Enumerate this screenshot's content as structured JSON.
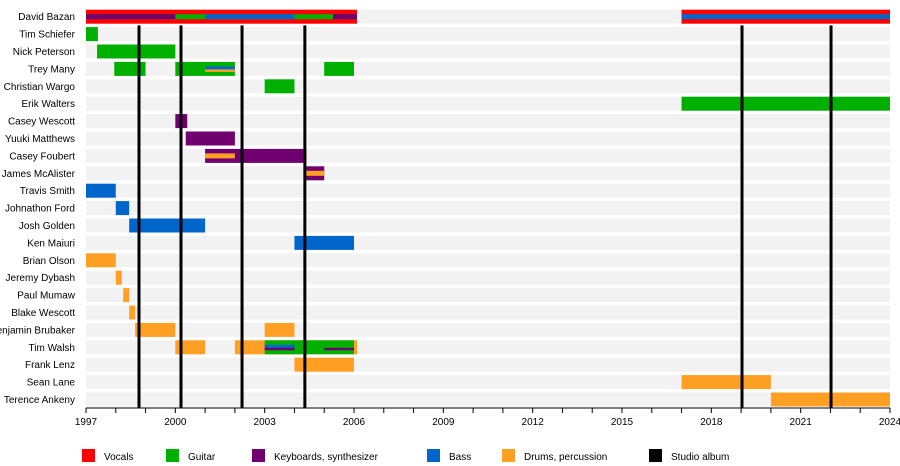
{
  "chart_data": {
    "type": "timeline",
    "xlim": [
      1997,
      2024
    ],
    "x_ticks": [
      1997,
      2000,
      2003,
      2006,
      2009,
      2012,
      2015,
      2018,
      2021,
      2024
    ],
    "grid": false,
    "legend_placement": "bottom",
    "roles": {
      "vocals": {
        "label": "Vocals",
        "color": "#ff0000"
      },
      "guitar": {
        "label": "Guitar",
        "color": "#00b000"
      },
      "keyboards": {
        "label": "Keyboards, synthesizer",
        "color": "#700070"
      },
      "bass": {
        "label": "Bass",
        "color": "#0066cc"
      },
      "drums": {
        "label": "Drums, percussion",
        "color": "#ffa024"
      },
      "album": {
        "label": "Studio album",
        "color": "#000000"
      }
    },
    "legend_order": [
      "vocals",
      "guitar",
      "keyboards",
      "bass",
      "drums",
      "album"
    ],
    "studio_albums": [
      1998.78,
      2000.19,
      2002.24,
      2004.35,
      2019.03,
      2022.02
    ],
    "members": [
      {
        "name": "David Bazan",
        "bars": [
          {
            "role": "vocals",
            "start": 1997,
            "end": 2006.1
          },
          {
            "role": "guitar",
            "start": 1997,
            "end": 2006.1,
            "secondary": true
          },
          {
            "role": "keyboards",
            "start": 1997,
            "end": 2000,
            "secondary": true
          },
          {
            "role": "bass",
            "start": 2001,
            "end": 2004,
            "secondary": true
          },
          {
            "role": "keyboards",
            "start": 2005.3,
            "end": 2006.1,
            "secondary": true
          },
          {
            "role": "vocals",
            "start": 2017,
            "end": 2024
          },
          {
            "role": "bass",
            "start": 2017,
            "end": 2024,
            "secondary": true
          }
        ]
      },
      {
        "name": "Tim Schiefer",
        "bars": [
          {
            "role": "guitar",
            "start": 1997,
            "end": 1997.4
          }
        ]
      },
      {
        "name": "Nick Peterson",
        "bars": [
          {
            "role": "guitar",
            "start": 1997.37,
            "end": 2000
          }
        ]
      },
      {
        "name": "Trey Many",
        "bars": [
          {
            "role": "guitar",
            "start": 1997.95,
            "end": 1999
          },
          {
            "role": "guitar",
            "start": 2000,
            "end": 2002
          },
          {
            "role": "bass",
            "start": 2001,
            "end": 2002,
            "secondary": true
          },
          {
            "role": "drums",
            "start": 2001,
            "end": 2002,
            "secondary": true,
            "thin": true
          },
          {
            "role": "guitar",
            "start": 2005,
            "end": 2006
          }
        ]
      },
      {
        "name": "Christian Wargo",
        "bars": [
          {
            "role": "guitar",
            "start": 2003,
            "end": 2004
          }
        ]
      },
      {
        "name": "Erik Walters",
        "bars": [
          {
            "role": "guitar",
            "start": 2017,
            "end": 2024
          }
        ]
      },
      {
        "name": "Casey Wescott",
        "bars": [
          {
            "role": "keyboards",
            "start": 2000,
            "end": 2000.4
          }
        ]
      },
      {
        "name": "Yuuki Matthews",
        "bars": [
          {
            "role": "keyboards",
            "start": 2000.35,
            "end": 2002
          }
        ]
      },
      {
        "name": "Casey Foubert",
        "bars": [
          {
            "role": "keyboards",
            "start": 2001,
            "end": 2004.4
          },
          {
            "role": "drums",
            "start": 2001,
            "end": 2002,
            "secondary": true
          }
        ]
      },
      {
        "name": "James McAlister",
        "bars": [
          {
            "role": "keyboards",
            "start": 2004.35,
            "end": 2005
          },
          {
            "role": "drums",
            "start": 2004.35,
            "end": 2005,
            "secondary": true
          }
        ]
      },
      {
        "name": "Travis Smith",
        "bars": [
          {
            "role": "bass",
            "start": 1997,
            "end": 1998
          }
        ]
      },
      {
        "name": "Johnathon Ford",
        "bars": [
          {
            "role": "bass",
            "start": 1998,
            "end": 1998.45
          }
        ]
      },
      {
        "name": "Josh Golden",
        "bars": [
          {
            "role": "bass",
            "start": 1998.45,
            "end": 2001
          }
        ]
      },
      {
        "name": "Ken Maiuri",
        "bars": [
          {
            "role": "bass",
            "start": 2004,
            "end": 2006
          }
        ]
      },
      {
        "name": "Brian Olson",
        "bars": [
          {
            "role": "drums",
            "start": 1997,
            "end": 1998
          }
        ]
      },
      {
        "name": "Jeremy Dybash",
        "bars": [
          {
            "role": "drums",
            "start": 1998,
            "end": 1998.2
          }
        ]
      },
      {
        "name": "Paul Mumaw",
        "bars": [
          {
            "role": "drums",
            "start": 1998.25,
            "end": 1998.45
          }
        ]
      },
      {
        "name": "Blake Wescott",
        "bars": [
          {
            "role": "drums",
            "start": 1998.45,
            "end": 1998.65
          }
        ]
      },
      {
        "name": "Benjamin Brubaker",
        "bars": [
          {
            "role": "drums",
            "start": 1998.65,
            "end": 2000
          },
          {
            "role": "drums",
            "start": 2003,
            "end": 2004
          }
        ]
      },
      {
        "name": "Tim Walsh",
        "bars": [
          {
            "role": "drums",
            "start": 2000,
            "end": 2001
          },
          {
            "role": "drums",
            "start": 2002,
            "end": 2006.1
          },
          {
            "role": "guitar",
            "start": 2003,
            "end": 2006
          },
          {
            "role": "bass",
            "start": 2003,
            "end": 2004,
            "secondary": true
          },
          {
            "role": "keyboards",
            "start": 2003,
            "end": 2004,
            "secondary": true,
            "thin": true
          },
          {
            "role": "keyboards",
            "start": 2005,
            "end": 2006,
            "secondary": true,
            "thin": true
          }
        ]
      },
      {
        "name": "Frank Lenz",
        "bars": [
          {
            "role": "drums",
            "start": 2004,
            "end": 2006
          }
        ]
      },
      {
        "name": "Sean Lane",
        "bars": [
          {
            "role": "drums",
            "start": 2017,
            "end": 2020
          }
        ]
      },
      {
        "name": "Terence Ankeny",
        "bars": [
          {
            "role": "drums",
            "start": 2020,
            "end": 2024
          }
        ]
      }
    ]
  }
}
